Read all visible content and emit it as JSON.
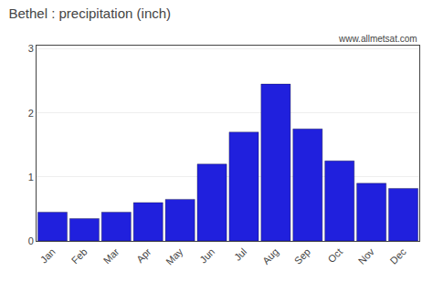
{
  "chart_data": {
    "type": "bar",
    "title": "Bethel : precipitation (inch)",
    "categories": [
      "Jan",
      "Feb",
      "Mar",
      "Apr",
      "May",
      "Jun",
      "Jul",
      "Aug",
      "Sep",
      "Oct",
      "Nov",
      "Dec"
    ],
    "values": [
      0.45,
      0.35,
      0.45,
      0.6,
      0.65,
      1.2,
      1.7,
      2.45,
      1.75,
      1.25,
      0.9,
      0.82
    ],
    "color": "#2020dd",
    "ylim": [
      0,
      3.05
    ],
    "yticks": [
      0,
      1,
      2,
      3
    ],
    "grid": true,
    "annotations": [
      "www.allmetsat.com"
    ]
  }
}
